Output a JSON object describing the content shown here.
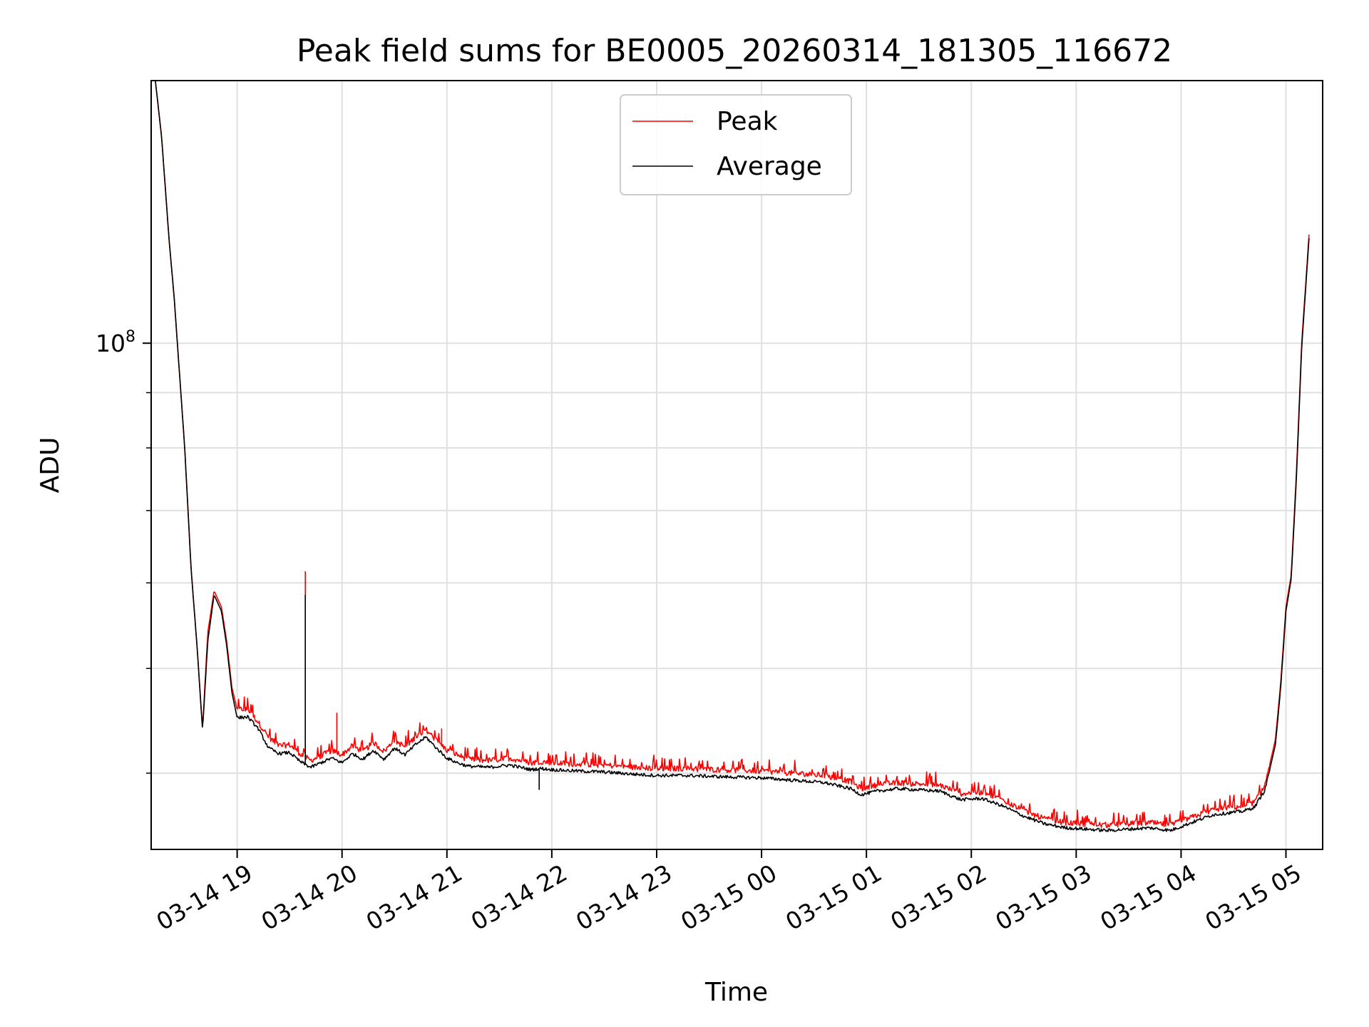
{
  "chart_data": {
    "type": "line",
    "title": "Peak field sums for BE0005_20260314_181305_116672",
    "xlabel": "Time",
    "ylabel": "ADU",
    "yscale": "log",
    "xlim": [
      18.18,
      29.35
    ],
    "ylim": [
      34000000,
      175000000
    ],
    "grid": true,
    "legend_position": "top-center",
    "x_ticks": [
      {
        "value": 19,
        "label": "03-14 19"
      },
      {
        "value": 20,
        "label": "03-14 20"
      },
      {
        "value": 21,
        "label": "03-14 21"
      },
      {
        "value": 22,
        "label": "03-14 22"
      },
      {
        "value": 23,
        "label": "03-14 23"
      },
      {
        "value": 24,
        "label": "03-15 00"
      },
      {
        "value": 25,
        "label": "03-15 01"
      },
      {
        "value": 26,
        "label": "03-15 02"
      },
      {
        "value": 27,
        "label": "03-15 03"
      },
      {
        "value": 28,
        "label": "03-15 04"
      },
      {
        "value": 29,
        "label": "03-15 05"
      }
    ],
    "y_major_ticks": [
      {
        "value": 100000000,
        "base": "10",
        "exp": "8"
      }
    ],
    "y_minor_ticks": [
      40000000,
      50000000,
      60000000,
      70000000,
      80000000,
      90000000,
      200000000
    ],
    "series": [
      {
        "name": "Peak",
        "color": "#ff0000",
        "x": [
          18.22,
          18.28,
          18.35,
          18.4,
          18.5,
          18.56,
          18.62,
          18.67,
          18.72,
          18.78,
          18.85,
          18.9,
          18.95,
          19.0,
          19.1,
          19.2,
          19.3,
          19.4,
          19.5,
          19.6,
          19.7,
          19.8,
          19.9,
          20.0,
          20.1,
          20.2,
          20.3,
          20.4,
          20.5,
          20.6,
          20.7,
          20.8,
          20.9,
          21.0,
          21.1,
          21.2,
          21.4,
          21.6,
          21.8,
          21.9,
          22.0,
          22.2,
          22.5,
          22.8,
          23.0,
          23.3,
          23.6,
          24.0,
          24.3,
          24.6,
          24.85,
          24.95,
          25.1,
          25.3,
          25.5,
          25.7,
          25.9,
          26.1,
          26.3,
          26.5,
          26.7,
          26.9,
          27.1,
          27.3,
          27.5,
          27.7,
          27.9,
          28.1,
          28.3,
          28.5,
          28.6,
          28.7,
          28.8,
          28.9,
          28.95,
          29.0,
          29.05,
          29.1,
          29.15,
          29.22
        ],
        "y": [
          175000000,
          155000000,
          125000000,
          110000000,
          80000000,
          62000000,
          52000000,
          44000000,
          54000000,
          59000000,
          57000000,
          53000000,
          48000000,
          45800000,
          45900000,
          44600000,
          43200000,
          42400000,
          42500000,
          41700000,
          41100000,
          41500000,
          42000000,
          41600000,
          42400000,
          41900000,
          42700000,
          41900000,
          42900000,
          42300000,
          43200000,
          43900000,
          42900000,
          42000000,
          41600000,
          41200000,
          41100000,
          41300000,
          40900000,
          41000000,
          40900000,
          40800000,
          40700000,
          40500000,
          40400000,
          40400000,
          40300000,
          40200000,
          40000000,
          39800000,
          39300000,
          38700000,
          39000000,
          39200000,
          39100000,
          39000000,
          38300000,
          38400000,
          37800000,
          36900000,
          36300000,
          36000000,
          35900000,
          35800000,
          35900000,
          36000000,
          35800000,
          36400000,
          37000000,
          37200000,
          37300000,
          37600000,
          39000000,
          43000000,
          48500000,
          57000000,
          61000000,
          76000000,
          100000000,
          126000000
        ],
        "spikes": [
          {
            "x": 19.65,
            "y": 61500000
          },
          {
            "x": 19.95,
            "y": 45500000
          },
          {
            "x": 20.95,
            "y": 44000000
          }
        ]
      },
      {
        "name": "Average",
        "color": "#000000",
        "x": [
          18.22,
          18.28,
          18.35,
          18.4,
          18.5,
          18.56,
          18.62,
          18.67,
          18.72,
          18.78,
          18.85,
          18.9,
          18.95,
          19.0,
          19.1,
          19.2,
          19.3,
          19.4,
          19.5,
          19.6,
          19.7,
          19.8,
          19.9,
          20.0,
          20.1,
          20.2,
          20.3,
          20.4,
          20.5,
          20.6,
          20.7,
          20.8,
          20.9,
          21.0,
          21.1,
          21.2,
          21.4,
          21.6,
          21.8,
          21.9,
          22.0,
          22.2,
          22.5,
          22.8,
          23.0,
          23.3,
          23.6,
          24.0,
          24.3,
          24.6,
          24.85,
          24.95,
          25.1,
          25.3,
          25.5,
          25.7,
          25.9,
          26.1,
          26.3,
          26.5,
          26.7,
          26.9,
          27.1,
          27.3,
          27.5,
          27.7,
          27.9,
          28.1,
          28.3,
          28.5,
          28.6,
          28.7,
          28.8,
          28.9,
          28.95,
          29.0,
          29.05,
          29.1,
          29.15,
          29.22
        ],
        "y": [
          175000000,
          155000000,
          125000000,
          110000000,
          80000000,
          62000000,
          52000000,
          43800000,
          53000000,
          58500000,
          56500000,
          52500000,
          47500000,
          45000000,
          45100000,
          44000000,
          42200000,
          41700000,
          41800000,
          41000000,
          40500000,
          40900000,
          41300000,
          40900000,
          41700000,
          41200000,
          42000000,
          41200000,
          42200000,
          41600000,
          42500000,
          43200000,
          42200000,
          41300000,
          40900000,
          40600000,
          40500000,
          40700000,
          40300000,
          40400000,
          40300000,
          40200000,
          40100000,
          39900000,
          39800000,
          39800000,
          39700000,
          39600000,
          39400000,
          39200000,
          38700000,
          38200000,
          38500000,
          38700000,
          38600000,
          38500000,
          37800000,
          37900000,
          37300000,
          36500000,
          35900000,
          35600000,
          35500000,
          35400000,
          35500000,
          35600000,
          35400000,
          36000000,
          36600000,
          36800000,
          36900000,
          37200000,
          38600000,
          42500000,
          48000000,
          56500000,
          60500000,
          75000000,
          99000000,
          125000000
        ],
        "spikes": [
          {
            "x": 19.65,
            "y": 58500000
          },
          {
            "x": 21.88,
            "y": 38600000
          }
        ]
      }
    ]
  }
}
